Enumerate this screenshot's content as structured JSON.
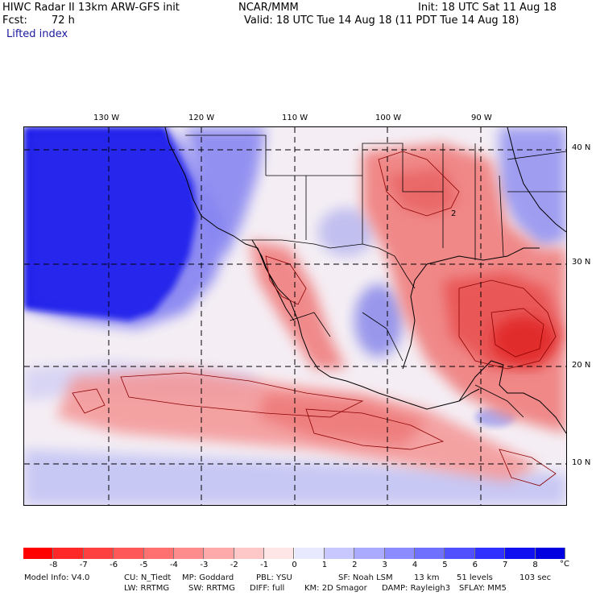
{
  "header": {
    "left_line1": "HIWC Radar II 13km ARW-GFS init",
    "left_line2_label": "Fcst:",
    "left_line2_value": "72 h",
    "field_name": "Lifted index",
    "center": "NCAR/MMM",
    "init": "Init: 18 UTC Sat 11 Aug 18",
    "valid": "Valid: 18 UTC Tue 14 Aug 18 (11 PDT Tue 14 Aug 18)"
  },
  "map": {
    "lon_labels": [
      "130 W",
      "120 W",
      "110 W",
      "100 W",
      "90 W"
    ],
    "lat_labels": [
      "40 N",
      "30 N",
      "20 N",
      "10 N"
    ],
    "contour_label": "2",
    "colors": {
      "ocean_stable": "#1010e0",
      "warm_unstable": "#e83838",
      "neutral": "#f6f0f4",
      "boundary": "#000000",
      "contour": "#8b0000"
    }
  },
  "colorbar": {
    "ticks": [
      "-8",
      "-7",
      "-6",
      "-5",
      "-4",
      "-3",
      "-2",
      "-1",
      "0",
      "1",
      "2",
      "3",
      "4",
      "5",
      "6",
      "7",
      "8"
    ],
    "unit": "°C",
    "colors": [
      "#ff0000",
      "#ff2828",
      "#ff4040",
      "#ff5858",
      "#ff7070",
      "#ff8c8c",
      "#ffaaaa",
      "#ffc8c8",
      "#ffe6e6",
      "#e8e8ff",
      "#c8c8ff",
      "#aaaaff",
      "#8c8cff",
      "#7070ff",
      "#5050ff",
      "#3030ff",
      "#1010f0",
      "#0000e0"
    ]
  },
  "footer": {
    "line1": [
      {
        "label": "Model Info: V4.0"
      },
      {
        "label": "CU: N_Tiedt"
      },
      {
        "label": "MP: Goddard"
      },
      {
        "label": "PBL: YSU"
      },
      {
        "label": "SF: Noah LSM"
      },
      {
        "label": "13 km"
      },
      {
        "label": "51 levels"
      },
      {
        "label": "103 sec"
      }
    ],
    "line2": [
      {
        "label": "LW: RRTMG"
      },
      {
        "label": "SW: RRTMG"
      },
      {
        "label": "DIFF: full"
      },
      {
        "label": "KM: 2D Smagor"
      },
      {
        "label": "DAMP: Rayleigh3"
      },
      {
        "label": "SFLAY: MM5"
      }
    ]
  }
}
